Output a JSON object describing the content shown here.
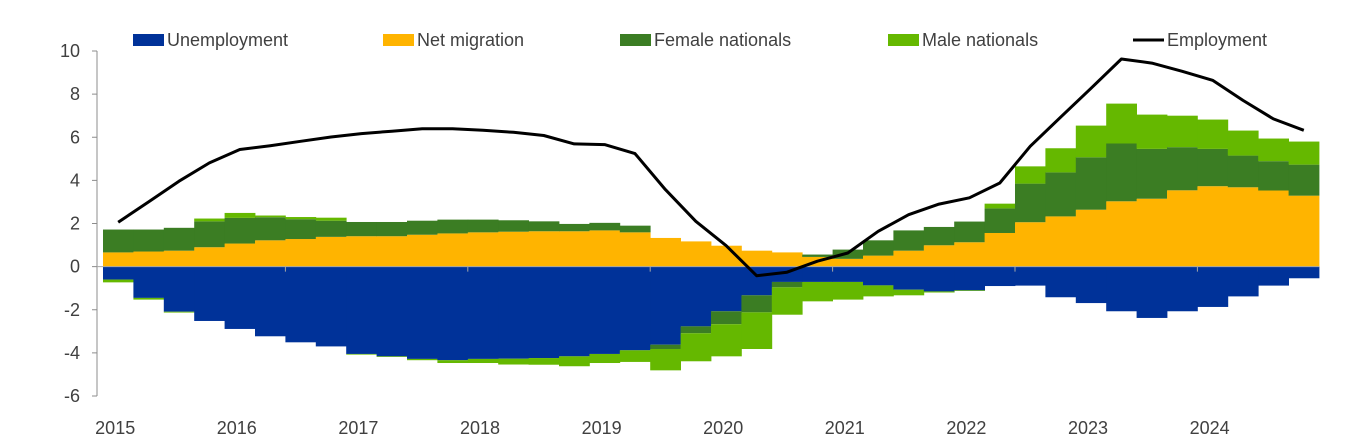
{
  "chart_data": {
    "type": "bar",
    "stacked": true,
    "title": "",
    "xlabel": "",
    "ylabel": "",
    "ylim": [
      -6,
      10
    ],
    "yticks": [
      "10",
      "8",
      "6",
      "4",
      "2",
      "0",
      "-2",
      "-4",
      "-6"
    ],
    "grid": false,
    "legend_position": "top",
    "x_tick_labels": [
      "2015",
      "2016",
      "2017",
      "2018",
      "2019",
      "2020",
      "2021",
      "2022",
      "2023",
      "2024"
    ],
    "categories": [
      "2015Q1",
      "2015Q2",
      "2015Q3",
      "2015Q4",
      "2016Q1",
      "2016Q2",
      "2016Q3",
      "2016Q4",
      "2017Q1",
      "2017Q2",
      "2017Q3",
      "2017Q4",
      "2018Q1",
      "2018Q2",
      "2018Q3",
      "2018Q4",
      "2019Q1",
      "2019Q2",
      "2019Q3",
      "2019Q4",
      "2020Q1",
      "2020Q2",
      "2020Q3",
      "2020Q4",
      "2021Q1",
      "2021Q2",
      "2021Q3",
      "2021Q4",
      "2022Q1",
      "2022Q2",
      "2022Q3",
      "2022Q4",
      "2023Q1",
      "2023Q2",
      "2023Q3",
      "2023Q4",
      "2024Q1",
      "2024Q2",
      "2024Q3",
      "2024Q4"
    ],
    "series": [
      {
        "name": "Unemployment",
        "kind": "bar",
        "color": "#003299",
        "values": [
          -0.6,
          -1.45,
          -2.09,
          -2.52,
          -2.89,
          -3.23,
          -3.51,
          -3.7,
          -4.05,
          -4.16,
          -4.28,
          -4.34,
          -4.28,
          -4.27,
          -4.24,
          -4.16,
          -4.05,
          -3.88,
          -3.62,
          -2.77,
          -2.07,
          -1.33,
          -0.71,
          -0.71,
          -0.71,
          -0.87,
          -1.07,
          -1.15,
          -1.1,
          -0.9,
          -0.88,
          -1.42,
          -1.69,
          -2.07,
          -2.38,
          -2.07,
          -1.87,
          -1.38,
          -0.88,
          -0.54
        ]
      },
      {
        "name": "Net migration",
        "kind": "bar",
        "color": "#FFB400",
        "values": [
          0.66,
          0.7,
          0.74,
          0.9,
          1.07,
          1.22,
          1.28,
          1.38,
          1.41,
          1.41,
          1.48,
          1.54,
          1.59,
          1.62,
          1.64,
          1.64,
          1.68,
          1.59,
          1.33,
          1.17,
          0.97,
          0.74,
          0.66,
          0.45,
          0.36,
          0.51,
          0.74,
          0.99,
          1.13,
          1.56,
          2.06,
          2.33,
          2.64,
          3.03,
          3.15,
          3.54,
          3.73,
          3.68,
          3.53,
          3.29
        ]
      },
      {
        "name": "Female nationals",
        "kind": "bar",
        "color": "#3B7D23",
        "values": [
          1.06,
          1.02,
          1.06,
          1.2,
          1.19,
          1.07,
          0.92,
          0.75,
          0.66,
          0.66,
          0.65,
          0.64,
          0.59,
          0.53,
          0.46,
          0.34,
          0.35,
          0.31,
          -0.2,
          -0.32,
          -0.6,
          -0.79,
          -0.25,
          0.11,
          0.43,
          0.71,
          0.94,
          0.85,
          0.96,
          1.14,
          1.79,
          2.04,
          2.43,
          2.68,
          2.31,
          2.0,
          1.73,
          1.47,
          1.36,
          1.44
        ]
      },
      {
        "name": "Male nationals",
        "kind": "bar",
        "color": "#65B800",
        "values": [
          -0.13,
          -0.08,
          -0.04,
          0.13,
          0.23,
          0.08,
          0.1,
          0.14,
          -0.03,
          -0.03,
          -0.06,
          -0.13,
          -0.19,
          -0.27,
          -0.31,
          -0.46,
          -0.42,
          -0.54,
          -0.99,
          -1.3,
          -1.49,
          -1.7,
          -1.27,
          -0.9,
          -0.82,
          -0.51,
          -0.26,
          -0.05,
          -0.03,
          0.22,
          0.8,
          1.12,
          1.47,
          1.85,
          1.59,
          1.46,
          1.36,
          1.16,
          1.05,
          1.07
        ]
      },
      {
        "name": "Employment",
        "kind": "line",
        "color": "#000000",
        "values": [
          2.06,
          3.0,
          3.96,
          4.81,
          5.43,
          5.61,
          5.81,
          6.01,
          6.17,
          6.28,
          6.39,
          6.39,
          6.32,
          6.23,
          6.08,
          5.69,
          5.66,
          5.24,
          3.57,
          2.1,
          0.97,
          -0.42,
          -0.26,
          0.25,
          0.63,
          1.64,
          2.41,
          2.9,
          3.19,
          3.88,
          5.58,
          6.93,
          8.27,
          9.63,
          9.44,
          9.06,
          8.64,
          7.71,
          6.85,
          6.32
        ]
      }
    ]
  }
}
